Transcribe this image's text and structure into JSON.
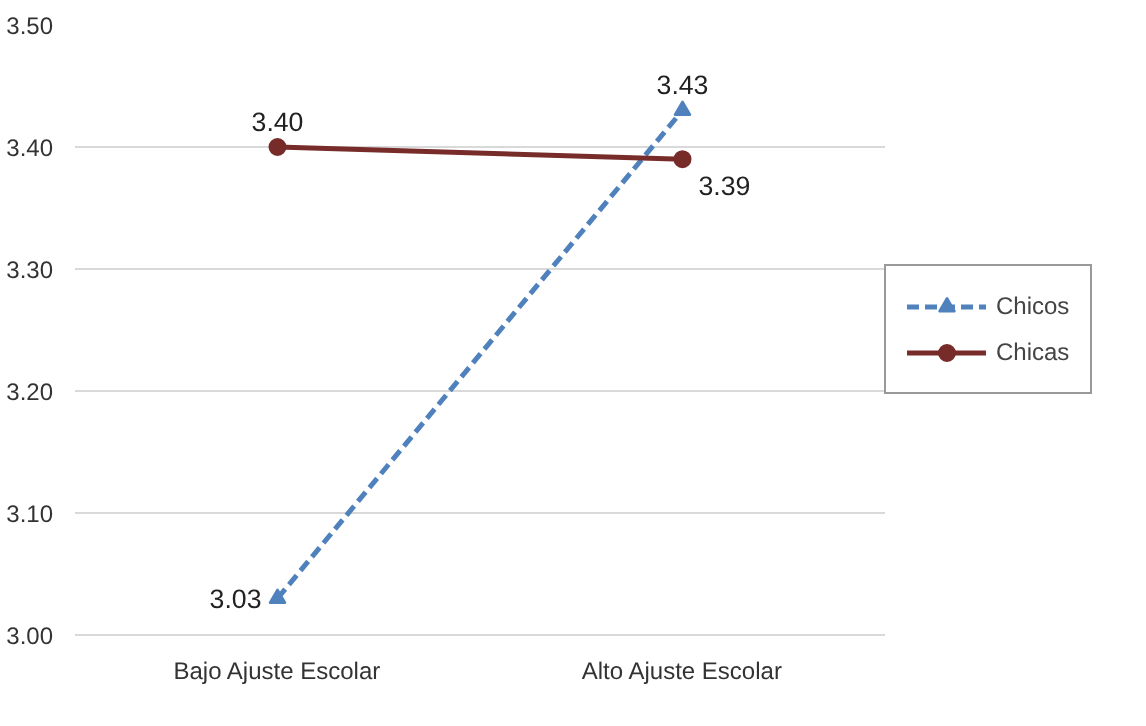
{
  "chart_data": {
    "type": "line",
    "categories": [
      "Bajo Ajuste Escolar",
      "Alto Ajuste Escolar"
    ],
    "series": [
      {
        "name": "Chicos",
        "color": "#4f81bd",
        "values": [
          3.03,
          3.43
        ],
        "value_labels": [
          "3.03",
          "3.43"
        ],
        "marker": "triangle",
        "line_style": "dashed"
      },
      {
        "name": "Chicas",
        "color": "#772c2a",
        "values": [
          3.4,
          3.39
        ],
        "value_labels": [
          "3.40",
          "3.39"
        ],
        "marker": "circle",
        "line_style": "solid"
      }
    ],
    "ylim": [
      3.0,
      3.5
    ],
    "yticks": [
      {
        "value": 3.0,
        "label": "3.00"
      },
      {
        "value": 3.1,
        "label": "3.10"
      },
      {
        "value": 3.2,
        "label": "3.20"
      },
      {
        "value": 3.3,
        "label": "3.30"
      },
      {
        "value": 3.4,
        "label": "3.40"
      },
      {
        "value": 3.5,
        "label": "3.50"
      }
    ],
    "grid": "y",
    "legend": "right"
  }
}
